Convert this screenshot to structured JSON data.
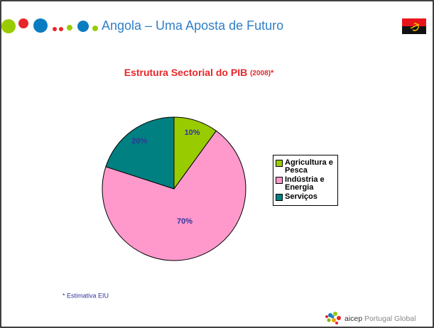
{
  "header": {
    "title": "Angola – Uma Aposta de Futuro"
  },
  "chart_data": {
    "type": "pie",
    "title": "Estrutura Sectorial do PIB",
    "title_year": "(2008)",
    "title_mark": "*",
    "categories": [
      "Agricultura e Pesca",
      "Indústria e Energia",
      "Serviços"
    ],
    "values": [
      10,
      70,
      20
    ],
    "value_labels": [
      "10%",
      "70%",
      "20%"
    ],
    "colors": [
      "#99cc00",
      "#ff99cc",
      "#008080"
    ],
    "legend": "right"
  },
  "footnote": "* Estimativa EIU",
  "logo": {
    "name": "aicep",
    "tagline": "Portugal Global"
  }
}
